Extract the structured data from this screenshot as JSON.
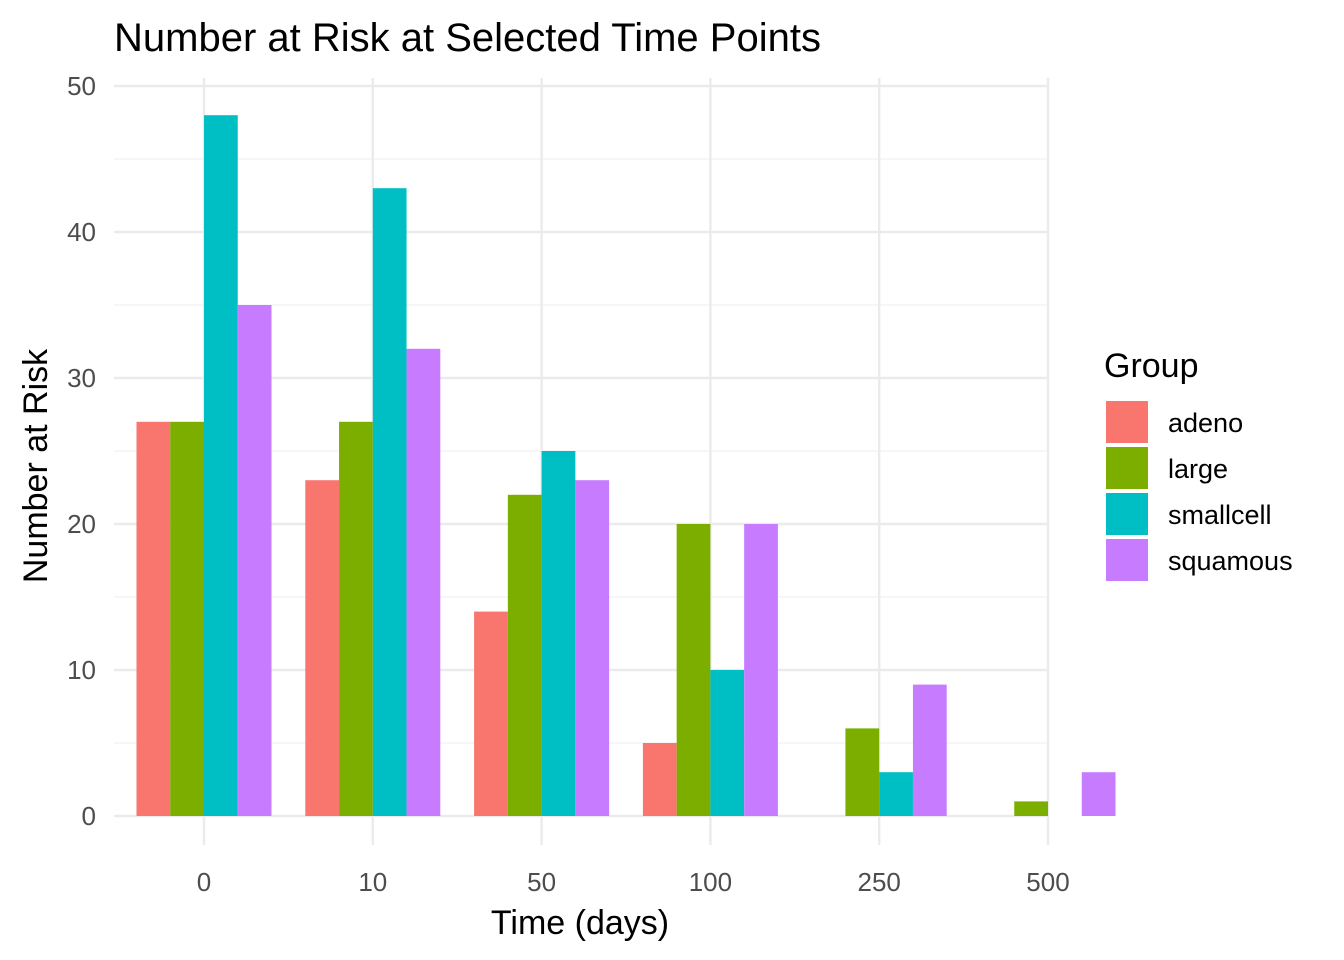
{
  "chart_data": {
    "type": "bar",
    "title": "Number at Risk at Selected Time Points",
    "xlabel": "Time (days)",
    "ylabel": "Number at Risk",
    "categories": [
      "0",
      "10",
      "50",
      "100",
      "250",
      "500"
    ],
    "ylim": [
      0,
      50
    ],
    "yticks": [
      0,
      10,
      20,
      30,
      40,
      50
    ],
    "grid": true,
    "legend": {
      "title": "Group",
      "position": "right"
    },
    "series": [
      {
        "name": "adeno",
        "color": "#F8766D",
        "values": [
          27,
          23,
          14,
          5,
          null,
          null
        ]
      },
      {
        "name": "large",
        "color": "#7CAE00",
        "values": [
          27,
          27,
          22,
          20,
          6,
          1
        ]
      },
      {
        "name": "smallcell",
        "color": "#00BFC4",
        "values": [
          48,
          43,
          25,
          10,
          3,
          null
        ]
      },
      {
        "name": "squamous",
        "color": "#C77CFF",
        "values": [
          35,
          32,
          23,
          20,
          9,
          3
        ]
      }
    ]
  }
}
